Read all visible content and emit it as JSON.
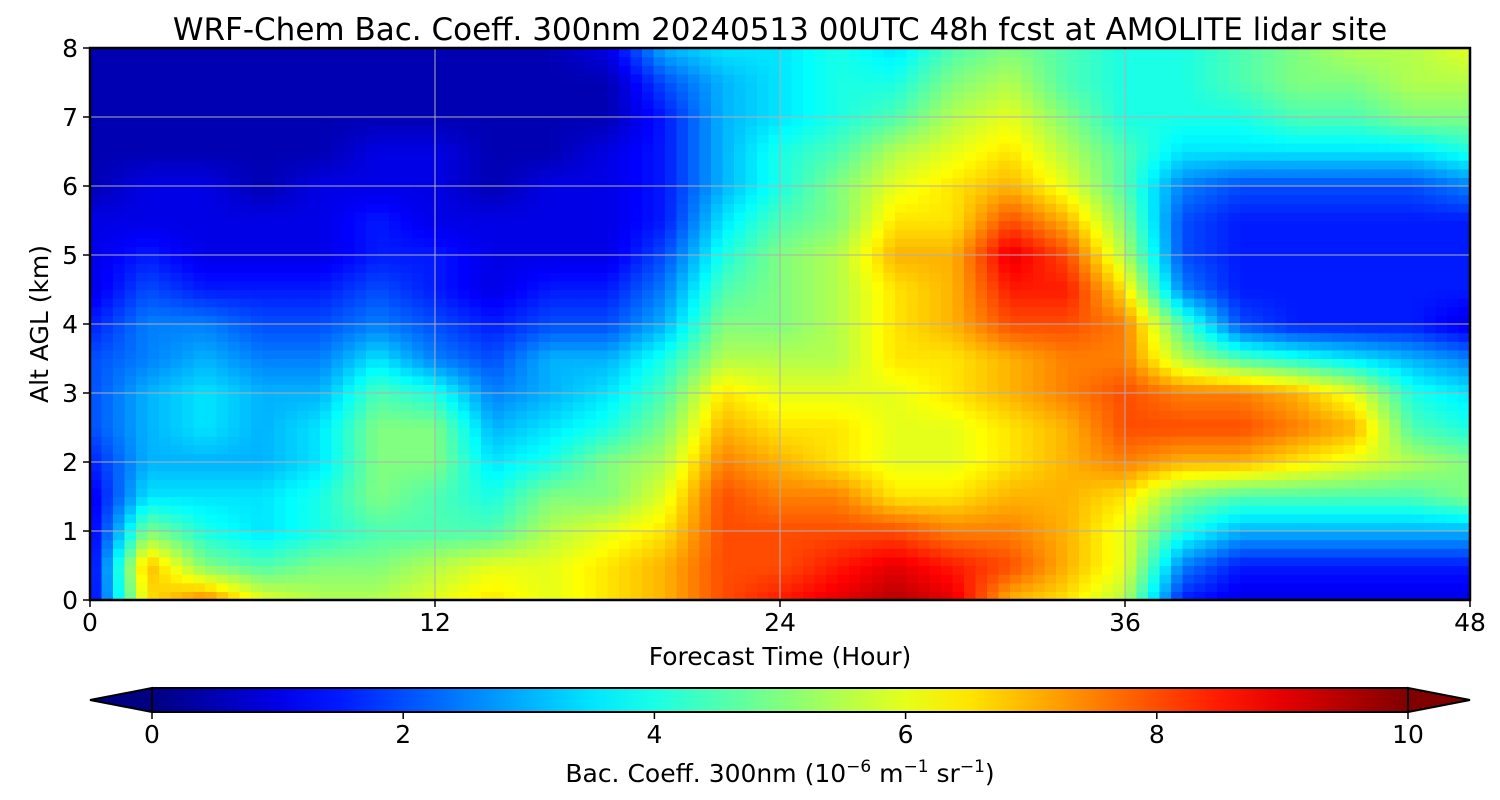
{
  "chart_data": {
    "type": "heatmap",
    "title": "WRF-Chem Bac. Coeff. 300nm  20240513 00UTC 48h fcst at AMOLITE lidar site",
    "xlabel": "Forecast Time (Hour)",
    "ylabel": "Alt AGL (km)",
    "xlim": [
      0,
      48
    ],
    "ylim": [
      0,
      8
    ],
    "xticks": [
      "0",
      "12",
      "24",
      "36",
      "48"
    ],
    "yticks": [
      "0",
      "1",
      "2",
      "3",
      "4",
      "5",
      "6",
      "7",
      "8"
    ],
    "grid": true,
    "colormap": "jet",
    "colorbar": {
      "orientation": "horizontal",
      "extend": "both",
      "range": [
        0,
        10
      ],
      "ticks": [
        "0",
        "2",
        "4",
        "6",
        "8",
        "10"
      ],
      "label_main": "Bac. Coeff. 300nm  (10",
      "label_exp1": "−6",
      "label_mid1": " m",
      "label_exp2": "−1",
      "label_mid2": " sr",
      "label_exp3": "−1",
      "label_end": ")"
    },
    "x": [
      0,
      2,
      4,
      6,
      8,
      10,
      12,
      14,
      16,
      18,
      20,
      22,
      24,
      26,
      28,
      30,
      32,
      34,
      36,
      38,
      40,
      42,
      44,
      46,
      48
    ],
    "y": [
      0,
      0.5,
      1,
      1.5,
      2,
      2.5,
      3,
      3.5,
      4,
      4.5,
      5,
      5.5,
      6,
      6.5,
      7,
      7.5,
      8
    ],
    "values": [
      [
        1.0,
        6.5,
        7.5,
        6.0,
        5.5,
        5.5,
        6.0,
        6.5,
        6.0,
        6.5,
        7.0,
        8.0,
        8.5,
        9.0,
        9.5,
        9.0,
        7.0,
        6.5,
        5.5,
        1.5,
        1.0,
        1.0,
        1.0,
        1.0,
        1.0
      ],
      [
        1.0,
        7.0,
        5.0,
        4.5,
        5.0,
        5.0,
        5.5,
        6.0,
        6.0,
        6.5,
        7.0,
        8.0,
        8.0,
        8.5,
        9.0,
        8.5,
        8.0,
        7.0,
        6.0,
        2.5,
        1.5,
        1.5,
        1.5,
        1.5,
        1.5
      ],
      [
        1.0,
        5.0,
        4.0,
        3.5,
        4.0,
        4.5,
        4.5,
        4.5,
        5.5,
        6.0,
        6.5,
        8.0,
        8.0,
        8.0,
        8.0,
        7.5,
        7.5,
        7.0,
        6.0,
        4.0,
        3.0,
        3.0,
        3.0,
        3.0,
        3.0
      ],
      [
        1.0,
        3.5,
        3.5,
        3.5,
        4.0,
        5.0,
        4.5,
        4.0,
        5.0,
        5.0,
        6.0,
        8.0,
        7.5,
        7.5,
        6.5,
        6.5,
        7.0,
        7.0,
        6.5,
        5.0,
        4.5,
        4.5,
        4.5,
        4.5,
        5.0
      ],
      [
        1.5,
        3.0,
        3.0,
        3.0,
        3.5,
        5.0,
        5.0,
        3.5,
        4.0,
        5.0,
        5.5,
        7.5,
        7.0,
        6.5,
        6.0,
        6.0,
        6.5,
        7.0,
        7.5,
        7.0,
        7.0,
        6.5,
        6.0,
        5.5,
        5.0
      ],
      [
        2.0,
        3.0,
        3.5,
        3.0,
        3.5,
        5.0,
        5.0,
        3.0,
        3.5,
        4.0,
        5.0,
        7.0,
        6.5,
        6.5,
        6.0,
        6.0,
        6.5,
        7.0,
        8.0,
        8.0,
        8.0,
        7.5,
        7.0,
        4.5,
        4.0
      ],
      [
        2.0,
        3.0,
        3.5,
        3.0,
        3.0,
        4.5,
        4.0,
        2.5,
        3.0,
        3.5,
        4.5,
        6.5,
        6.0,
        6.0,
        6.0,
        6.5,
        7.0,
        7.5,
        8.0,
        7.5,
        7.5,
        7.0,
        6.0,
        4.0,
        3.5
      ],
      [
        2.0,
        2.5,
        3.0,
        2.5,
        2.5,
        3.5,
        2.5,
        2.0,
        3.0,
        3.0,
        4.0,
        5.5,
        5.5,
        5.5,
        6.5,
        6.5,
        7.0,
        7.5,
        7.5,
        5.5,
        4.5,
        4.0,
        3.5,
        3.0,
        2.5
      ],
      [
        1.5,
        2.5,
        2.5,
        2.0,
        2.0,
        2.5,
        2.0,
        1.5,
        2.0,
        2.0,
        3.0,
        5.0,
        5.0,
        5.5,
        6.5,
        7.0,
        8.0,
        8.0,
        7.5,
        4.5,
        2.0,
        1.5,
        1.5,
        1.5,
        1.0
      ],
      [
        1.0,
        2.0,
        1.5,
        1.5,
        1.5,
        2.0,
        1.5,
        1.0,
        1.5,
        1.5,
        2.5,
        4.5,
        5.0,
        5.5,
        6.5,
        7.0,
        8.5,
        8.5,
        6.5,
        2.5,
        1.5,
        1.5,
        1.5,
        1.5,
        1.5
      ],
      [
        1.0,
        1.5,
        1.0,
        1.0,
        1.0,
        1.5,
        1.5,
        1.0,
        1.0,
        1.0,
        2.0,
        4.0,
        5.0,
        5.5,
        7.0,
        7.0,
        9.0,
        8.0,
        5.5,
        2.0,
        1.5,
        1.5,
        1.5,
        1.5,
        1.5
      ],
      [
        1.0,
        1.0,
        1.0,
        1.0,
        1.0,
        1.5,
        1.0,
        1.0,
        1.0,
        1.0,
        1.5,
        3.5,
        4.5,
        5.0,
        6.5,
        6.5,
        8.0,
        7.0,
        5.0,
        2.0,
        1.5,
        1.5,
        1.5,
        1.5,
        1.5
      ],
      [
        0.5,
        1.0,
        1.0,
        0.5,
        1.0,
        1.0,
        1.0,
        0.5,
        1.0,
        1.0,
        1.5,
        3.0,
        4.0,
        5.0,
        6.0,
        6.5,
        7.0,
        6.0,
        4.5,
        2.5,
        2.0,
        2.0,
        2.0,
        2.0,
        2.5
      ],
      [
        0.5,
        0.5,
        0.5,
        0.5,
        0.5,
        1.0,
        1.0,
        0.5,
        0.5,
        1.0,
        1.5,
        3.0,
        4.0,
        4.5,
        5.5,
        6.0,
        6.5,
        5.5,
        4.5,
        3.5,
        3.5,
        3.5,
        3.5,
        3.5,
        4.0
      ],
      [
        0.5,
        0.5,
        0.5,
        0.5,
        0.5,
        0.5,
        0.5,
        0.5,
        0.5,
        0.5,
        1.5,
        3.0,
        3.5,
        4.0,
        4.5,
        5.5,
        6.0,
        5.0,
        4.0,
        4.0,
        4.0,
        4.5,
        4.5,
        5.0,
        5.0
      ],
      [
        0.5,
        0.5,
        0.5,
        0.5,
        0.5,
        0.5,
        0.5,
        0.5,
        0.5,
        0.5,
        2.0,
        3.0,
        3.5,
        4.0,
        4.0,
        5.0,
        5.5,
        4.5,
        4.0,
        4.0,
        4.5,
        5.0,
        5.0,
        5.5,
        5.5
      ],
      [
        0.5,
        0.5,
        0.5,
        0.5,
        0.5,
        0.5,
        0.5,
        0.5,
        0.5,
        1.0,
        3.0,
        3.5,
        3.5,
        4.0,
        3.5,
        4.5,
        5.0,
        4.5,
        4.0,
        4.0,
        4.5,
        5.0,
        5.5,
        5.5,
        6.0
      ]
    ]
  }
}
